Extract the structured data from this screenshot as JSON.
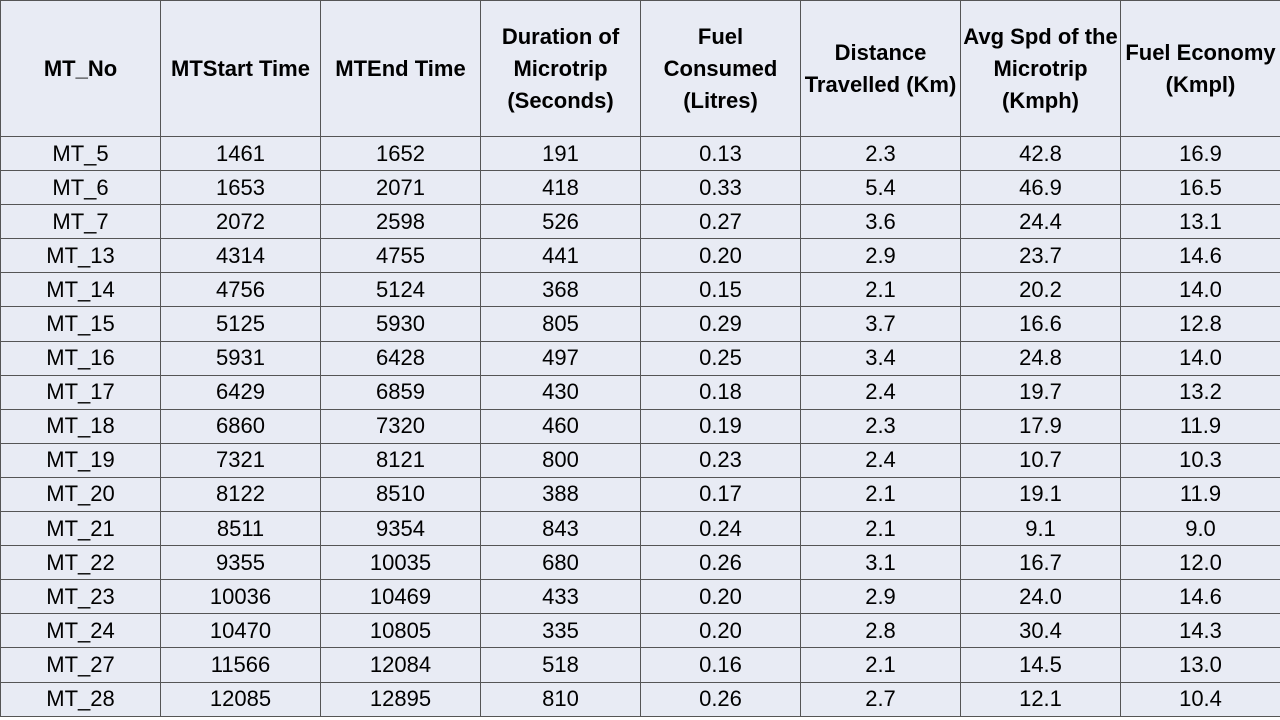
{
  "table": {
    "headers": [
      "MT_No",
      "MTStart Time",
      "MTEnd Time",
      "Duration of Microtrip (Seconds)",
      "Fuel Consumed (Litres)",
      "Distance Travelled (Km)",
      "Avg Spd of the Microtrip (Kmph)",
      "Fuel Economy (Kmpl)"
    ],
    "rows": [
      [
        "MT_5",
        "1461",
        "1652",
        "191",
        "0.13",
        "2.3",
        "42.8",
        "16.9"
      ],
      [
        "MT_6",
        "1653",
        "2071",
        "418",
        "0.33",
        "5.4",
        "46.9",
        "16.5"
      ],
      [
        "MT_7",
        "2072",
        "2598",
        "526",
        "0.27",
        "3.6",
        "24.4",
        "13.1"
      ],
      [
        "MT_13",
        "4314",
        "4755",
        "441",
        "0.20",
        "2.9",
        "23.7",
        "14.6"
      ],
      [
        "MT_14",
        "4756",
        "5124",
        "368",
        "0.15",
        "2.1",
        "20.2",
        "14.0"
      ],
      [
        "MT_15",
        "5125",
        "5930",
        "805",
        "0.29",
        "3.7",
        "16.6",
        "12.8"
      ],
      [
        "MT_16",
        "5931",
        "6428",
        "497",
        "0.25",
        "3.4",
        "24.8",
        "14.0"
      ],
      [
        "MT_17",
        "6429",
        "6859",
        "430",
        "0.18",
        "2.4",
        "19.7",
        "13.2"
      ],
      [
        "MT_18",
        "6860",
        "7320",
        "460",
        "0.19",
        "2.3",
        "17.9",
        "11.9"
      ],
      [
        "MT_19",
        "7321",
        "8121",
        "800",
        "0.23",
        "2.4",
        "10.7",
        "10.3"
      ],
      [
        "MT_20",
        "8122",
        "8510",
        "388",
        "0.17",
        "2.1",
        "19.1",
        "11.9"
      ],
      [
        "MT_21",
        "8511",
        "9354",
        "843",
        "0.24",
        "2.1",
        "9.1",
        "9.0"
      ],
      [
        "MT_22",
        "9355",
        "10035",
        "680",
        "0.26",
        "3.1",
        "16.7",
        "12.0"
      ],
      [
        "MT_23",
        "10036",
        "10469",
        "433",
        "0.20",
        "2.9",
        "24.0",
        "14.6"
      ],
      [
        "MT_24",
        "10470",
        "10805",
        "335",
        "0.20",
        "2.8",
        "30.4",
        "14.3"
      ],
      [
        "MT_27",
        "11566",
        "12084",
        "518",
        "0.16",
        "2.1",
        "14.5",
        "13.0"
      ],
      [
        "MT_28",
        "12085",
        "12895",
        "810",
        "0.26",
        "2.7",
        "12.1",
        "10.4"
      ]
    ]
  },
  "colors": {
    "cell_background": "#e8ebf4",
    "border": "#555555",
    "text": "#000000"
  }
}
